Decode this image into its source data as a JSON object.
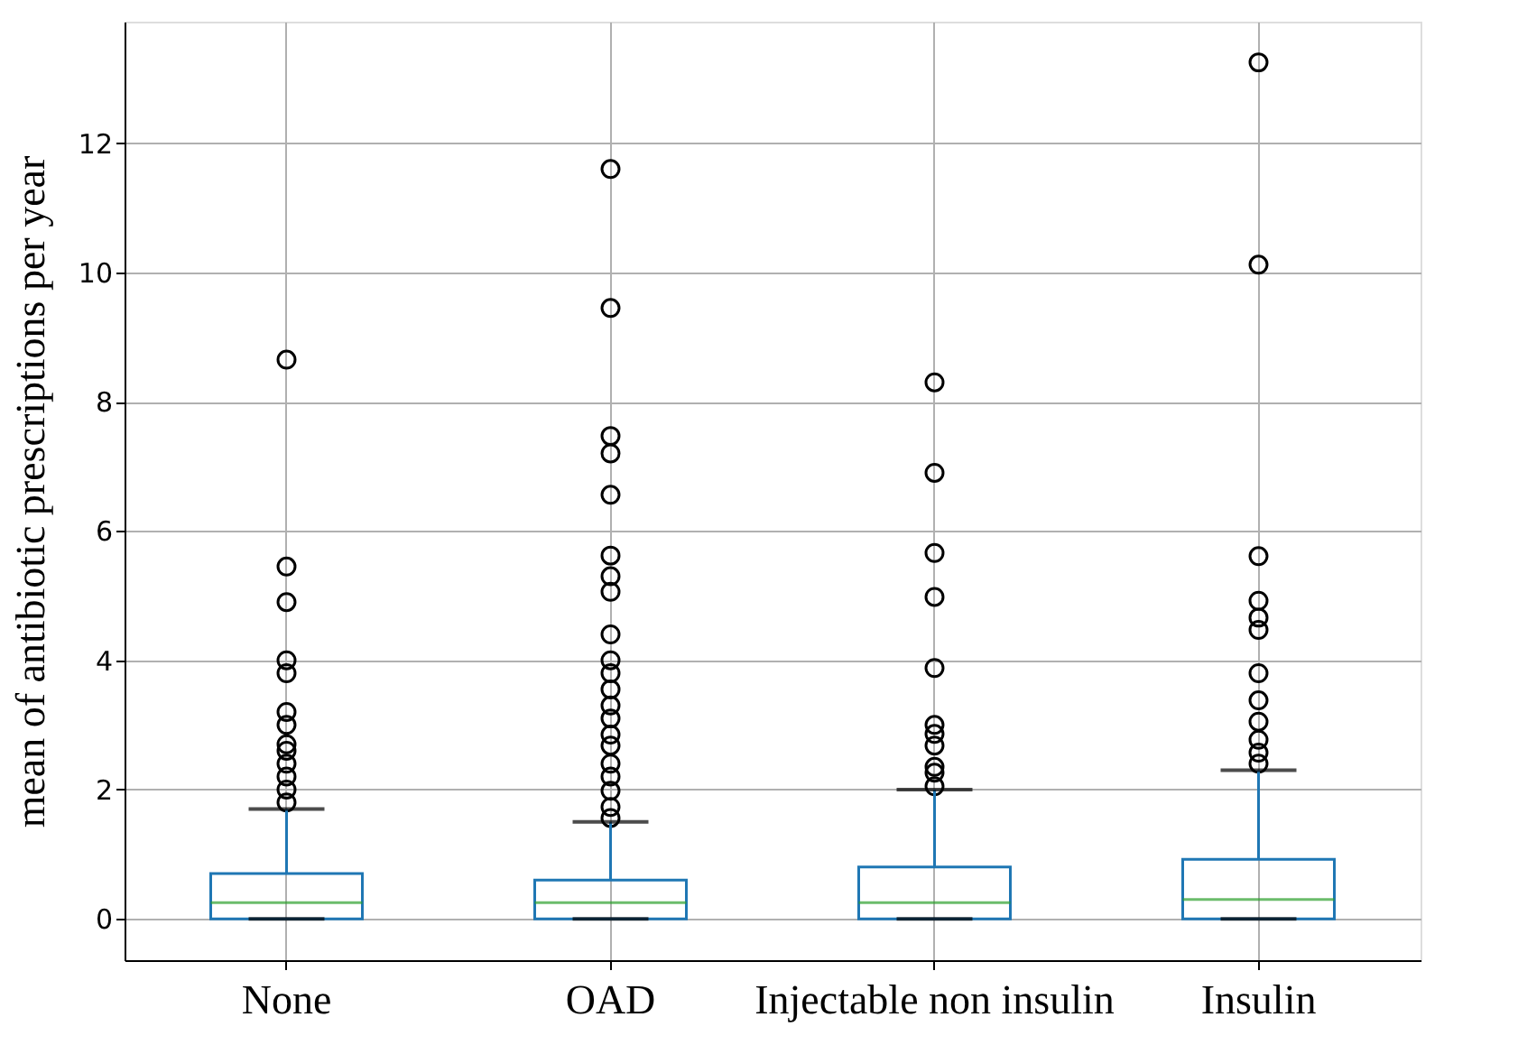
{
  "chart_data": {
    "type": "box",
    "ylabel": "mean of antibiotic prescriptions per year",
    "categories": [
      "None",
      "OAD",
      "Injectable non insulin",
      "Insulin"
    ],
    "ylim": [
      -0.64,
      13.88
    ],
    "yticks": [
      0,
      2,
      4,
      6,
      8,
      10,
      12
    ],
    "grid": true,
    "boxes": [
      {
        "low": 0,
        "q1": 0,
        "median": 0.25,
        "q3": 0.7,
        "high": 1.7,
        "outliers": [
          8.65,
          5.45,
          4.9,
          4.0,
          3.8,
          3.2,
          3.0,
          2.7,
          2.6,
          2.4,
          2.2,
          2.0,
          1.8
        ]
      },
      {
        "low": 0,
        "q1": 0,
        "median": 0.25,
        "q3": 0.6,
        "high": 1.5,
        "outliers": [
          11.6,
          9.45,
          7.47,
          7.2,
          6.56,
          5.62,
          5.3,
          5.06,
          4.4,
          4.0,
          3.8,
          3.55,
          3.3,
          3.1,
          2.85,
          2.68,
          2.4,
          2.2,
          1.98,
          1.73,
          1.56
        ]
      },
      {
        "low": 0,
        "q1": 0,
        "median": 0.25,
        "q3": 0.8,
        "high": 2.0,
        "outliers": [
          8.3,
          6.9,
          5.66,
          4.98,
          3.88,
          3.0,
          2.86,
          2.68,
          2.35,
          2.26,
          2.05
        ]
      },
      {
        "low": 0,
        "q1": 0,
        "median": 0.3,
        "q3": 0.92,
        "high": 2.3,
        "outliers": [
          13.25,
          10.12,
          5.61,
          4.92,
          4.66,
          4.47,
          3.8,
          3.38,
          3.05,
          2.77,
          2.57,
          2.4
        ]
      }
    ]
  }
}
